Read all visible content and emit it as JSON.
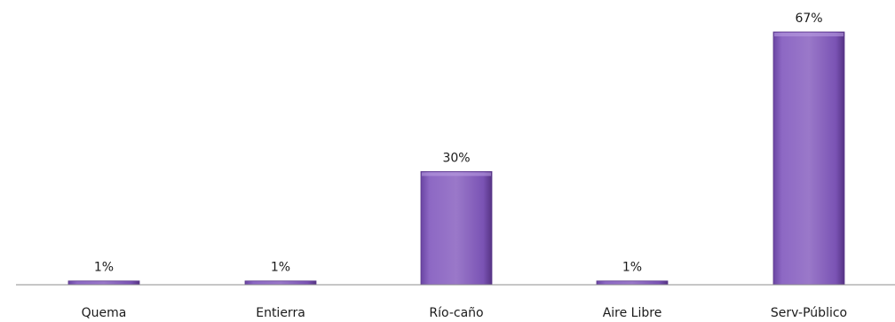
{
  "chart_data": {
    "type": "bar",
    "categories": [
      "Quema",
      "Entierra",
      "Río-caño",
      "Aire Libre",
      "Serv-Público"
    ],
    "values": [
      1,
      1,
      30,
      1,
      67
    ],
    "data_labels": [
      "1%",
      "1%",
      "30%",
      "1%",
      "67%"
    ],
    "title": "",
    "xlabel": "",
    "ylabel": "",
    "ylim": [
      0,
      70
    ],
    "grid": false,
    "legend": "none",
    "colors": {
      "bar_light": "#9a78c9",
      "bar_mid": "#7e56b8",
      "bar_dark": "#5c3a8c",
      "axis": "#8c8c8c"
    }
  }
}
